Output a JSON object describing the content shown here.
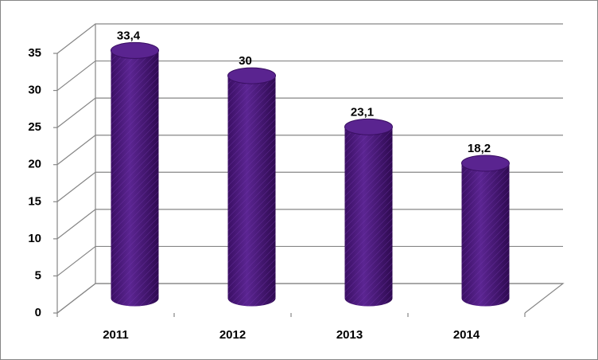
{
  "chart_data": {
    "type": "bar",
    "categories": [
      "2011",
      "2012",
      "2013",
      "2014"
    ],
    "values": [
      33.4,
      30,
      23.1,
      18.2
    ],
    "value_labels": [
      "33,4",
      "30",
      "23,1",
      "18,2"
    ],
    "color": "#4b1a7a",
    "ylim": [
      0,
      35
    ],
    "yticks": [
      0,
      5,
      10,
      15,
      20,
      25,
      30,
      35
    ],
    "grid": true
  }
}
